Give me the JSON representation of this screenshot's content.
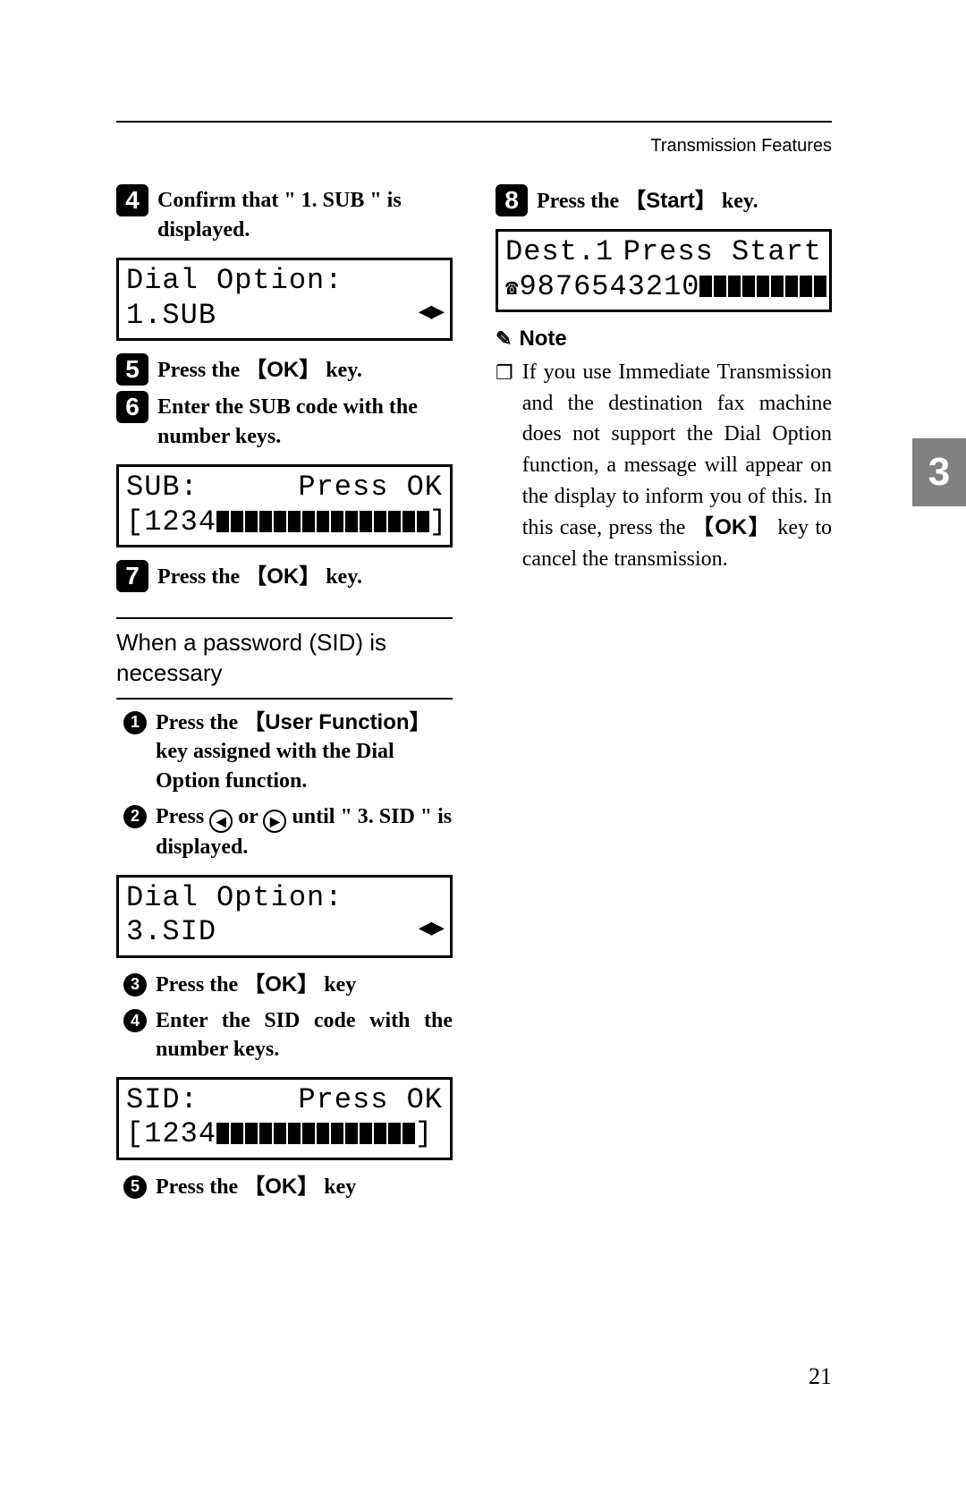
{
  "header": {
    "section_title": "Transmission Features"
  },
  "tab": {
    "chapter": "3"
  },
  "page_number": "21",
  "left": {
    "step4": {
      "num": "4",
      "text": "Confirm that \" 1. SUB \" is displayed."
    },
    "lcd1": {
      "line1": "Dial Option:",
      "line2_left": "1.SUB",
      "line2_right": "◀▶"
    },
    "step5": {
      "num": "5",
      "prefix": "Press the ",
      "key": "OK",
      "suffix": " key."
    },
    "step6": {
      "num": "6",
      "text": "Enter the SUB code with the number keys."
    },
    "lcd2": {
      "line1_left": "SUB:",
      "line1_right": "Press OK",
      "line2_left": "[1234",
      "blocks": 15,
      "line2_right": "]"
    },
    "step7": {
      "num": "7",
      "prefix": "Press the ",
      "key": "OK",
      "suffix": " key."
    },
    "subhead": "When a password (SID) is necessary",
    "sub1": {
      "num": "1",
      "prefix": "Press the ",
      "key": "User Function",
      "suffix": " key assigned with the Dial Option function."
    },
    "sub2": {
      "num": "2",
      "prefix": "Press ",
      "mid": " or ",
      "suffix": " until \" 3. SID \" is displayed."
    },
    "lcd3": {
      "line1": "Dial Option:",
      "line2_left": "3.SID",
      "line2_right": "◀▶"
    },
    "sub3": {
      "num": "3",
      "prefix": "Press the ",
      "key": "OK",
      "suffix": " key"
    },
    "sub4": {
      "num": "4",
      "text": "Enter the SID code with the number keys."
    },
    "lcd4": {
      "line1_left": "SID:",
      "line1_right": "Press OK",
      "line2_left": "[1234",
      "blocks": 14,
      "line2_right": "]"
    },
    "sub5": {
      "num": "5",
      "prefix": "Press the ",
      "key": "OK",
      "suffix": " key"
    }
  },
  "right": {
    "step8": {
      "num": "8",
      "prefix": "Press the ",
      "key": "Start",
      "suffix": " key."
    },
    "lcd5": {
      "line1_left": "Dest.1",
      "line1_right": "Press Start",
      "line2_num": "9876543210",
      "blocks": 9
    },
    "note_label": "Note",
    "note_text_1": "If you use Immediate Transmission and the destination fax machine does not support the Dial Option function, a message will appear on the display to inform you of this. In this case, press the ",
    "note_key": "OK",
    "note_text_2": " key to cancel the transmission."
  },
  "colors": {
    "tab_bg": "#808080",
    "text": "#000000"
  }
}
